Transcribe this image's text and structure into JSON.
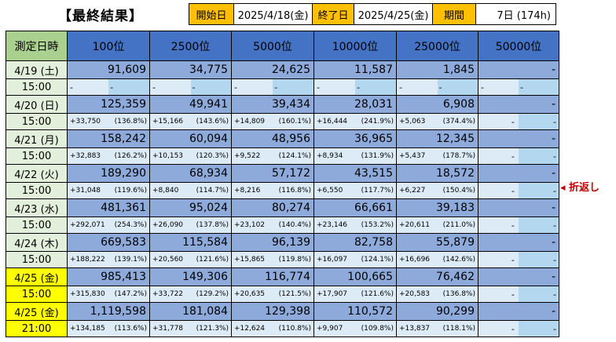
{
  "header": {
    "title": "【最終結果】",
    "start_label": "開始日",
    "start_value": "2025/4/18(金)",
    "end_label": "終了日",
    "end_value": "2025/4/25(金)",
    "period_label": "期間",
    "period_value": "7日 (174h)"
  },
  "table": {
    "columns": [
      "測定日時",
      "100位",
      "2500位",
      "5000位",
      "10000位",
      "25000位",
      "50000位"
    ],
    "rows": [
      {
        "date": "4/19 (土)",
        "time": "15:00",
        "values": [
          "91,609",
          "34,775",
          "24,625",
          "11,587",
          "1,845",
          "-"
        ],
        "diffs": [
          "-",
          "-",
          "-",
          "-",
          "-",
          "-"
        ],
        "pcts": [
          "-",
          "-",
          "-",
          "-",
          "-",
          "-"
        ],
        "highlight": false
      },
      {
        "date": "4/20 (日)",
        "time": "15:00",
        "values": [
          "125,359",
          "49,941",
          "39,434",
          "28,031",
          "6,908",
          "-"
        ],
        "diffs": [
          "+33,750",
          "+15,166",
          "+14,809",
          "+16,444",
          "+5,063",
          "-"
        ],
        "pcts": [
          "(136.8%)",
          "(143.6%)",
          "(160.1%)",
          "(241.9%)",
          "(374.4%)",
          "-"
        ],
        "highlight": false
      },
      {
        "date": "4/21 (月)",
        "time": "15:00",
        "values": [
          "158,242",
          "60,094",
          "48,956",
          "36,965",
          "12,345",
          "-"
        ],
        "diffs": [
          "+32,883",
          "+10,153",
          "+9,522",
          "+8,934",
          "+5,437",
          "-"
        ],
        "pcts": [
          "(126.2%)",
          "(120.3%)",
          "(124.1%)",
          "(131.9%)",
          "(178.7%)",
          "-"
        ],
        "highlight": false
      },
      {
        "date": "4/22 (火)",
        "time": "15:00",
        "values": [
          "189,290",
          "68,934",
          "57,172",
          "43,515",
          "18,572",
          "-"
        ],
        "diffs": [
          "+31,048",
          "+8,840",
          "+8,216",
          "+6,550",
          "+6,227",
          "-"
        ],
        "pcts": [
          "(119.6%)",
          "(114.7%)",
          "(116.8%)",
          "(117.7%)",
          "(150.4%)",
          "-"
        ],
        "highlight": false
      },
      {
        "date": "4/23 (水)",
        "time": "15:00",
        "values": [
          "481,361",
          "95,024",
          "80,274",
          "66,661",
          "39,183",
          "-"
        ],
        "diffs": [
          "+292,071",
          "+26,090",
          "+23,102",
          "+23,146",
          "+20,611",
          "-"
        ],
        "pcts": [
          "(254.3%)",
          "(137.8%)",
          "(140.4%)",
          "(153.2%)",
          "(211.0%)",
          "-"
        ],
        "highlight": false
      },
      {
        "date": "4/24 (木)",
        "time": "15:00",
        "values": [
          "669,583",
          "115,584",
          "96,139",
          "82,758",
          "55,879",
          "-"
        ],
        "diffs": [
          "+188,222",
          "+20,560",
          "+15,865",
          "+16,097",
          "+16,696",
          "-"
        ],
        "pcts": [
          "(139.1%)",
          "(121.6%)",
          "(119.8%)",
          "(124.1%)",
          "(142.6%)",
          "-"
        ],
        "highlight": false
      },
      {
        "date": "4/25 (金)",
        "time": "15:00",
        "values": [
          "985,413",
          "149,306",
          "116,774",
          "100,665",
          "76,462",
          "-"
        ],
        "diffs": [
          "+315,830",
          "+33,722",
          "+20,635",
          "+17,907",
          "+20,583",
          "-"
        ],
        "pcts": [
          "(147.2%)",
          "(129.2%)",
          "(121.5%)",
          "(121.6%)",
          "(136.8%)",
          "-"
        ],
        "highlight": true
      },
      {
        "date": "4/25 (金)",
        "time": "21:00",
        "values": [
          "1,119,598",
          "181,084",
          "129,398",
          "110,572",
          "90,299",
          "-"
        ],
        "diffs": [
          "+134,185",
          "+31,778",
          "+12,624",
          "+9,907",
          "+13,837",
          "-"
        ],
        "pcts": [
          "(113.6%)",
          "(121.3%)",
          "(110.8%)",
          "(109.8%)",
          "(118.1%)",
          "-"
        ],
        "highlight": true
      }
    ]
  },
  "annotation": {
    "text": "◂ 折返し"
  },
  "colors": {
    "header_blue": "#4472c4",
    "value_blue": "#8eaadb",
    "sub_blue": "#ddebf7",
    "date_green": "#e2efda",
    "highlight_yellow": "#ffff00",
    "orange": "#ffc000",
    "annotation_red": "#c00000"
  }
}
